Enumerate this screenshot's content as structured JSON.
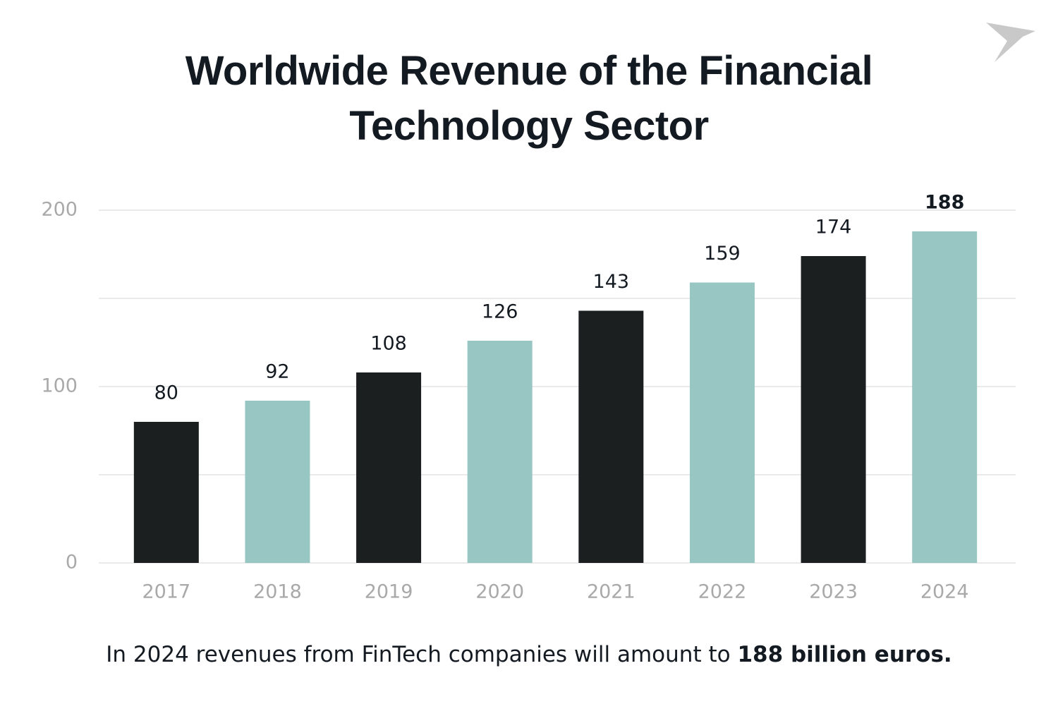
{
  "chart_data": {
    "type": "bar",
    "title": "Worldwide Revenue of the Financial Technology Sector",
    "categories": [
      "2017",
      "2018",
      "2019",
      "2020",
      "2021",
      "2022",
      "2023",
      "2024"
    ],
    "values": [
      80,
      92,
      108,
      126,
      143,
      159,
      174,
      188
    ],
    "colors": [
      "#1c1f20",
      "#98c6c3",
      "#1c1f20",
      "#98c6c3",
      "#1c1f20",
      "#98c6c3",
      "#1c1f20",
      "#98c6c3"
    ],
    "ylim": [
      0,
      200
    ],
    "yticks": [
      0,
      100,
      200
    ],
    "minor_gridlines": [
      50,
      150
    ],
    "grid": true,
    "highlight_last_label": true,
    "footnote": {
      "text": "In 2024 revenues from FinTech companies will amount to",
      "emphasis": "188 billion euros."
    }
  }
}
